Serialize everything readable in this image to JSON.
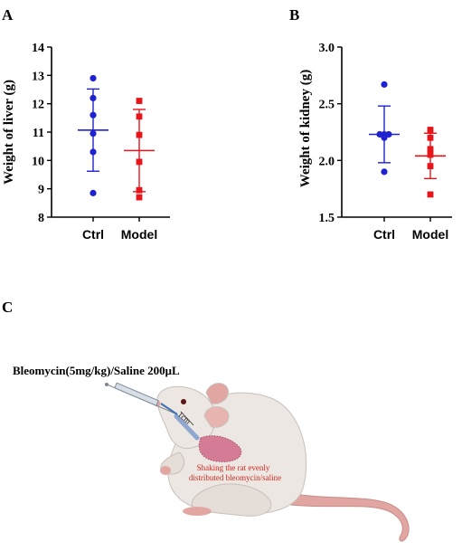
{
  "colors": {
    "ctrl": "#1f22cf",
    "model": "#e8141a",
    "axis": "#000000"
  },
  "chart_data": [
    {
      "type": "scatter",
      "panel": "A",
      "ylabel": "Weight of liver (g)",
      "categories": [
        "Ctrl",
        "Model"
      ],
      "ylim": [
        8,
        14
      ],
      "yticks": [
        8,
        9,
        10,
        11,
        12,
        13,
        14
      ],
      "ytick_labels": [
        "8",
        "9",
        "10",
        "11",
        "12",
        "13",
        "14"
      ],
      "series": [
        {
          "group": "Ctrl",
          "marker": "circle",
          "mean": 11.07,
          "sd": 1.45,
          "values": [
            12.9,
            12.2,
            11.6,
            10.95,
            10.3,
            8.85
          ]
        },
        {
          "group": "Model",
          "marker": "square",
          "mean": 10.35,
          "sd": 1.45,
          "values": [
            12.1,
            11.55,
            10.9,
            9.95,
            8.95,
            8.7
          ]
        }
      ]
    },
    {
      "type": "scatter",
      "panel": "B",
      "ylabel": "Weight of kidney (g)",
      "categories": [
        "Ctrl",
        "Model"
      ],
      "ylim": [
        1.5,
        3.0
      ],
      "yticks": [
        1.5,
        2.0,
        2.5,
        3.0
      ],
      "ytick_labels": [
        "1.5",
        "2.0",
        "2.5",
        "3.0"
      ],
      "series": [
        {
          "group": "Ctrl",
          "marker": "circle",
          "mean": 2.23,
          "sd": 0.25,
          "values": [
            2.67,
            2.23,
            2.23,
            2.23,
            2.2,
            1.9
          ]
        },
        {
          "group": "Model",
          "marker": "square",
          "mean": 2.04,
          "sd": 0.2,
          "values": [
            2.27,
            2.2,
            2.1,
            2.05,
            1.95,
            1.7
          ]
        }
      ]
    }
  ],
  "panel_c": {
    "label": "C",
    "injection_text": "Bleomycin(5mg/kg)/Saline 200μL",
    "distance_label": "1cm",
    "annotation_line1": "Shaking the rat evenly",
    "annotation_line2": "distributed bleomycin/saline"
  },
  "panel_labels": {
    "a": "A",
    "b": "B",
    "c": "C"
  }
}
